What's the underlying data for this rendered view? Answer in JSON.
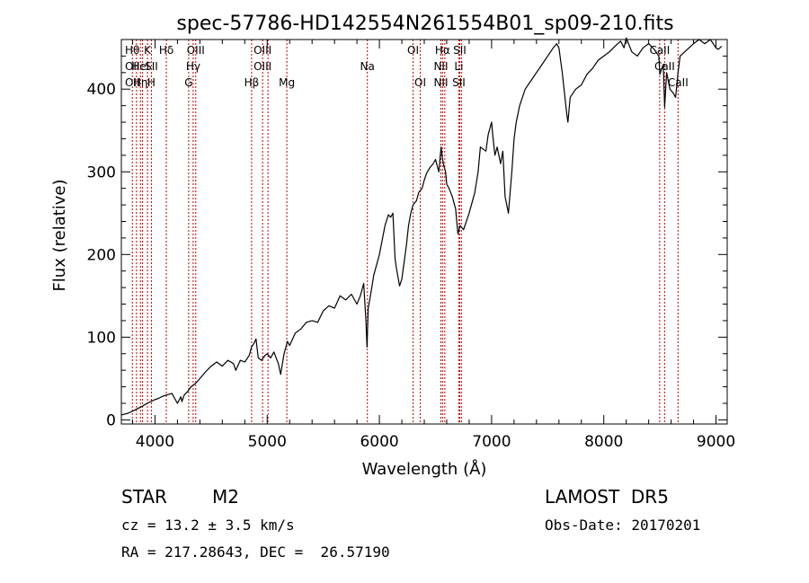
{
  "chart_data": {
    "type": "line",
    "title": "spec-57786-HD142554N261554B01_sp09-210.fits",
    "xlabel": "Wavelength (Å)",
    "ylabel": "Flux (relative)",
    "xlim": [
      3700,
      9100
    ],
    "ylim": [
      -5,
      460
    ],
    "x_ticks": [
      4000,
      5000,
      6000,
      7000,
      8000,
      9000
    ],
    "y_ticks": [
      0,
      100,
      200,
      300,
      400
    ],
    "grid": false,
    "series": [
      {
        "color": "#000000",
        "x": [
          3700,
          3760,
          3820,
          3880,
          3930,
          3960,
          3990,
          4030,
          4060,
          4100,
          4150,
          4200,
          4230,
          4240,
          4260,
          4290,
          4320,
          4360,
          4400,
          4450,
          4500,
          4550,
          4600,
          4650,
          4700,
          4720,
          4760,
          4800,
          4840,
          4860,
          4880,
          4900,
          4920,
          4950,
          4980,
          5000,
          5030,
          5060,
          5100,
          5120,
          5150,
          5170,
          5180,
          5200,
          5250,
          5300,
          5350,
          5400,
          5450,
          5500,
          5550,
          5600,
          5650,
          5700,
          5750,
          5800,
          5830,
          5860,
          5880,
          5890,
          5900,
          5920,
          5950,
          6000,
          6050,
          6080,
          6100,
          6120,
          6140,
          6150,
          6180,
          6200,
          6220,
          6240,
          6260,
          6280,
          6300,
          6330,
          6350,
          6380,
          6400,
          6420,
          6450,
          6480,
          6500,
          6530,
          6550,
          6560,
          6570,
          6590,
          6600,
          6620,
          6650,
          6680,
          6700,
          6720,
          6750,
          6800,
          6850,
          6880,
          6900,
          6950,
          6970,
          7000,
          7010,
          7030,
          7050,
          7080,
          7100,
          7120,
          7150,
          7180,
          7200,
          7220,
          7250,
          7300,
          7350,
          7400,
          7450,
          7500,
          7550,
          7580,
          7600,
          7630,
          7650,
          7670,
          7680,
          7700,
          7750,
          7800,
          7850,
          7900,
          7950,
          8000,
          8050,
          8100,
          8150,
          8180,
          8200,
          8220,
          8250,
          8300,
          8350,
          8400,
          8450,
          8490,
          8500,
          8530,
          8542,
          8560,
          8590,
          8620,
          8640,
          8662,
          8680,
          8720,
          8760,
          8800,
          8850,
          8900,
          8950,
          9000,
          9020,
          9050
        ],
        "y": [
          6,
          8,
          12,
          16,
          20,
          22,
          24,
          26,
          28,
          30,
          32,
          20,
          28,
          22,
          30,
          34,
          40,
          44,
          50,
          58,
          65,
          70,
          65,
          72,
          68,
          60,
          72,
          70,
          78,
          88,
          92,
          98,
          75,
          72,
          78,
          80,
          75,
          82,
          68,
          55,
          80,
          90,
          95,
          90,
          105,
          110,
          118,
          120,
          118,
          132,
          138,
          135,
          150,
          145,
          152,
          140,
          150,
          165,
          120,
          88,
          135,
          150,
          175,
          200,
          235,
          248,
          245,
          250,
          195,
          185,
          162,
          170,
          190,
          210,
          235,
          250,
          260,
          265,
          275,
          280,
          290,
          298,
          305,
          310,
          315,
          300,
          330,
          318,
          310,
          300,
          285,
          280,
          270,
          255,
          225,
          235,
          230,
          250,
          275,
          300,
          330,
          325,
          345,
          360,
          345,
          320,
          330,
          310,
          325,
          270,
          250,
          300,
          340,
          360,
          380,
          400,
          410,
          420,
          430,
          440,
          450,
          455,
          450,
          420,
          395,
          370,
          360,
          390,
          400,
          405,
          418,
          425,
          435,
          440,
          445,
          452,
          458,
          450,
          462,
          455,
          445,
          440,
          450,
          455,
          448,
          440,
          418,
          430,
          378,
          420,
          400,
          395,
          390,
          420,
          440,
          445,
          450,
          455,
          460,
          455,
          460,
          450,
          448,
          452
        ]
      }
    ],
    "lines": [
      {
        "x": 3798,
        "top": "Hθ",
        "mid": "OII",
        "bot": "OII"
      },
      {
        "x": 3835,
        "top": "",
        "mid": "",
        "bot": ""
      },
      {
        "x": 3870,
        "top": "",
        "mid": "HeI",
        "bot": "Hη"
      },
      {
        "x": 3889,
        "top": "",
        "mid": "",
        "bot": ""
      },
      {
        "x": 3933,
        "top": "K",
        "mid": "",
        "bot": ""
      },
      {
        "x": 3968,
        "top": "",
        "mid": "SII",
        "bot": "H"
      },
      {
        "x": 4101,
        "top": "Hδ",
        "mid": "",
        "bot": ""
      },
      {
        "x": 4300,
        "top": "",
        "mid": "",
        "bot": "G"
      },
      {
        "x": 4340,
        "top": "",
        "mid": "Hγ",
        "bot": ""
      },
      {
        "x": 4363,
        "top": "OIII",
        "mid": "",
        "bot": ""
      },
      {
        "x": 4861,
        "top": "",
        "mid": "",
        "bot": "Hβ"
      },
      {
        "x": 4959,
        "top": "OIII",
        "mid": "OIII",
        "bot": ""
      },
      {
        "x": 5007,
        "top": "",
        "mid": "",
        "bot": ""
      },
      {
        "x": 5175,
        "top": "",
        "mid": "",
        "bot": "Mg"
      },
      {
        "x": 5893,
        "top": "",
        "mid": "Na",
        "bot": ""
      },
      {
        "x": 6300,
        "top": "OI",
        "mid": "",
        "bot": ""
      },
      {
        "x": 6364,
        "top": "",
        "mid": "",
        "bot": "OI"
      },
      {
        "x": 6548,
        "top": "",
        "mid": "NII",
        "bot": "NII"
      },
      {
        "x": 6563,
        "top": "Hα",
        "mid": "",
        "bot": ""
      },
      {
        "x": 6583,
        "top": "",
        "mid": "",
        "bot": ""
      },
      {
        "x": 6708,
        "top": "",
        "mid": "Li",
        "bot": "SII"
      },
      {
        "x": 6716,
        "top": "SII",
        "mid": "",
        "bot": ""
      },
      {
        "x": 6731,
        "top": "",
        "mid": "",
        "bot": ""
      },
      {
        "x": 8498,
        "top": "CaII",
        "mid": "",
        "bot": ""
      },
      {
        "x": 8542,
        "top": "",
        "mid": "CaII",
        "bot": ""
      },
      {
        "x": 8662,
        "top": "",
        "mid": "",
        "bot": "CaII"
      }
    ]
  },
  "info": {
    "object_class": "STAR",
    "subclass": "M2",
    "survey": "LAMOST  DR5",
    "cz": "cz = 13.2 ± 3.5 km/s",
    "obs_date": "Obs-Date: 20170201",
    "coords": "RA = 217.28643, DEC =  26.57190"
  },
  "colors": {
    "spectrum": "#000000",
    "line_marker": "#c00000",
    "axis": "#000000"
  }
}
